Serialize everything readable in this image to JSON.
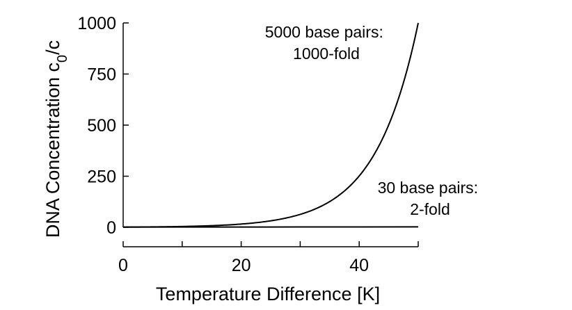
{
  "chart_data": {
    "type": "line",
    "title": "",
    "xlabel": "Temperature Difference [K]",
    "ylabel": {
      "base": "DNA Concentration c",
      "subscript": "0",
      "suffix": "/c"
    },
    "xlim": [
      0,
      50
    ],
    "ylim": [
      0,
      1000
    ],
    "x_ticks": [
      0,
      20,
      40
    ],
    "x_tick_labels": [
      "0",
      "20",
      "40"
    ],
    "x_minor_ticks": [
      10,
      30,
      50
    ],
    "y_ticks": [
      0,
      250,
      500,
      750,
      1000
    ],
    "y_tick_labels": [
      "0",
      "250",
      "500",
      "750",
      "1000"
    ],
    "grid": false,
    "series": [
      {
        "x": [
          0,
          5,
          10,
          15,
          20,
          25,
          28,
          30,
          32,
          35,
          38,
          40,
          42,
          44,
          46,
          48,
          50
        ],
        "values": [
          1,
          2,
          4,
          8,
          16,
          32,
          48,
          63,
          83,
          126,
          191,
          251,
          331,
          437,
          575,
          758,
          1000
        ],
        "color": "#000000"
      },
      {
        "x": [
          0,
          10,
          20,
          30,
          40,
          50
        ],
        "values": [
          1,
          1.15,
          1.32,
          1.52,
          1.74,
          2
        ],
        "color": "#000000"
      }
    ],
    "annotations": [
      {
        "lines": [
          "5000 base pairs:",
          "1000-fold"
        ]
      },
      {
        "lines": [
          "30 base pairs:",
          "2-fold"
        ]
      }
    ]
  }
}
